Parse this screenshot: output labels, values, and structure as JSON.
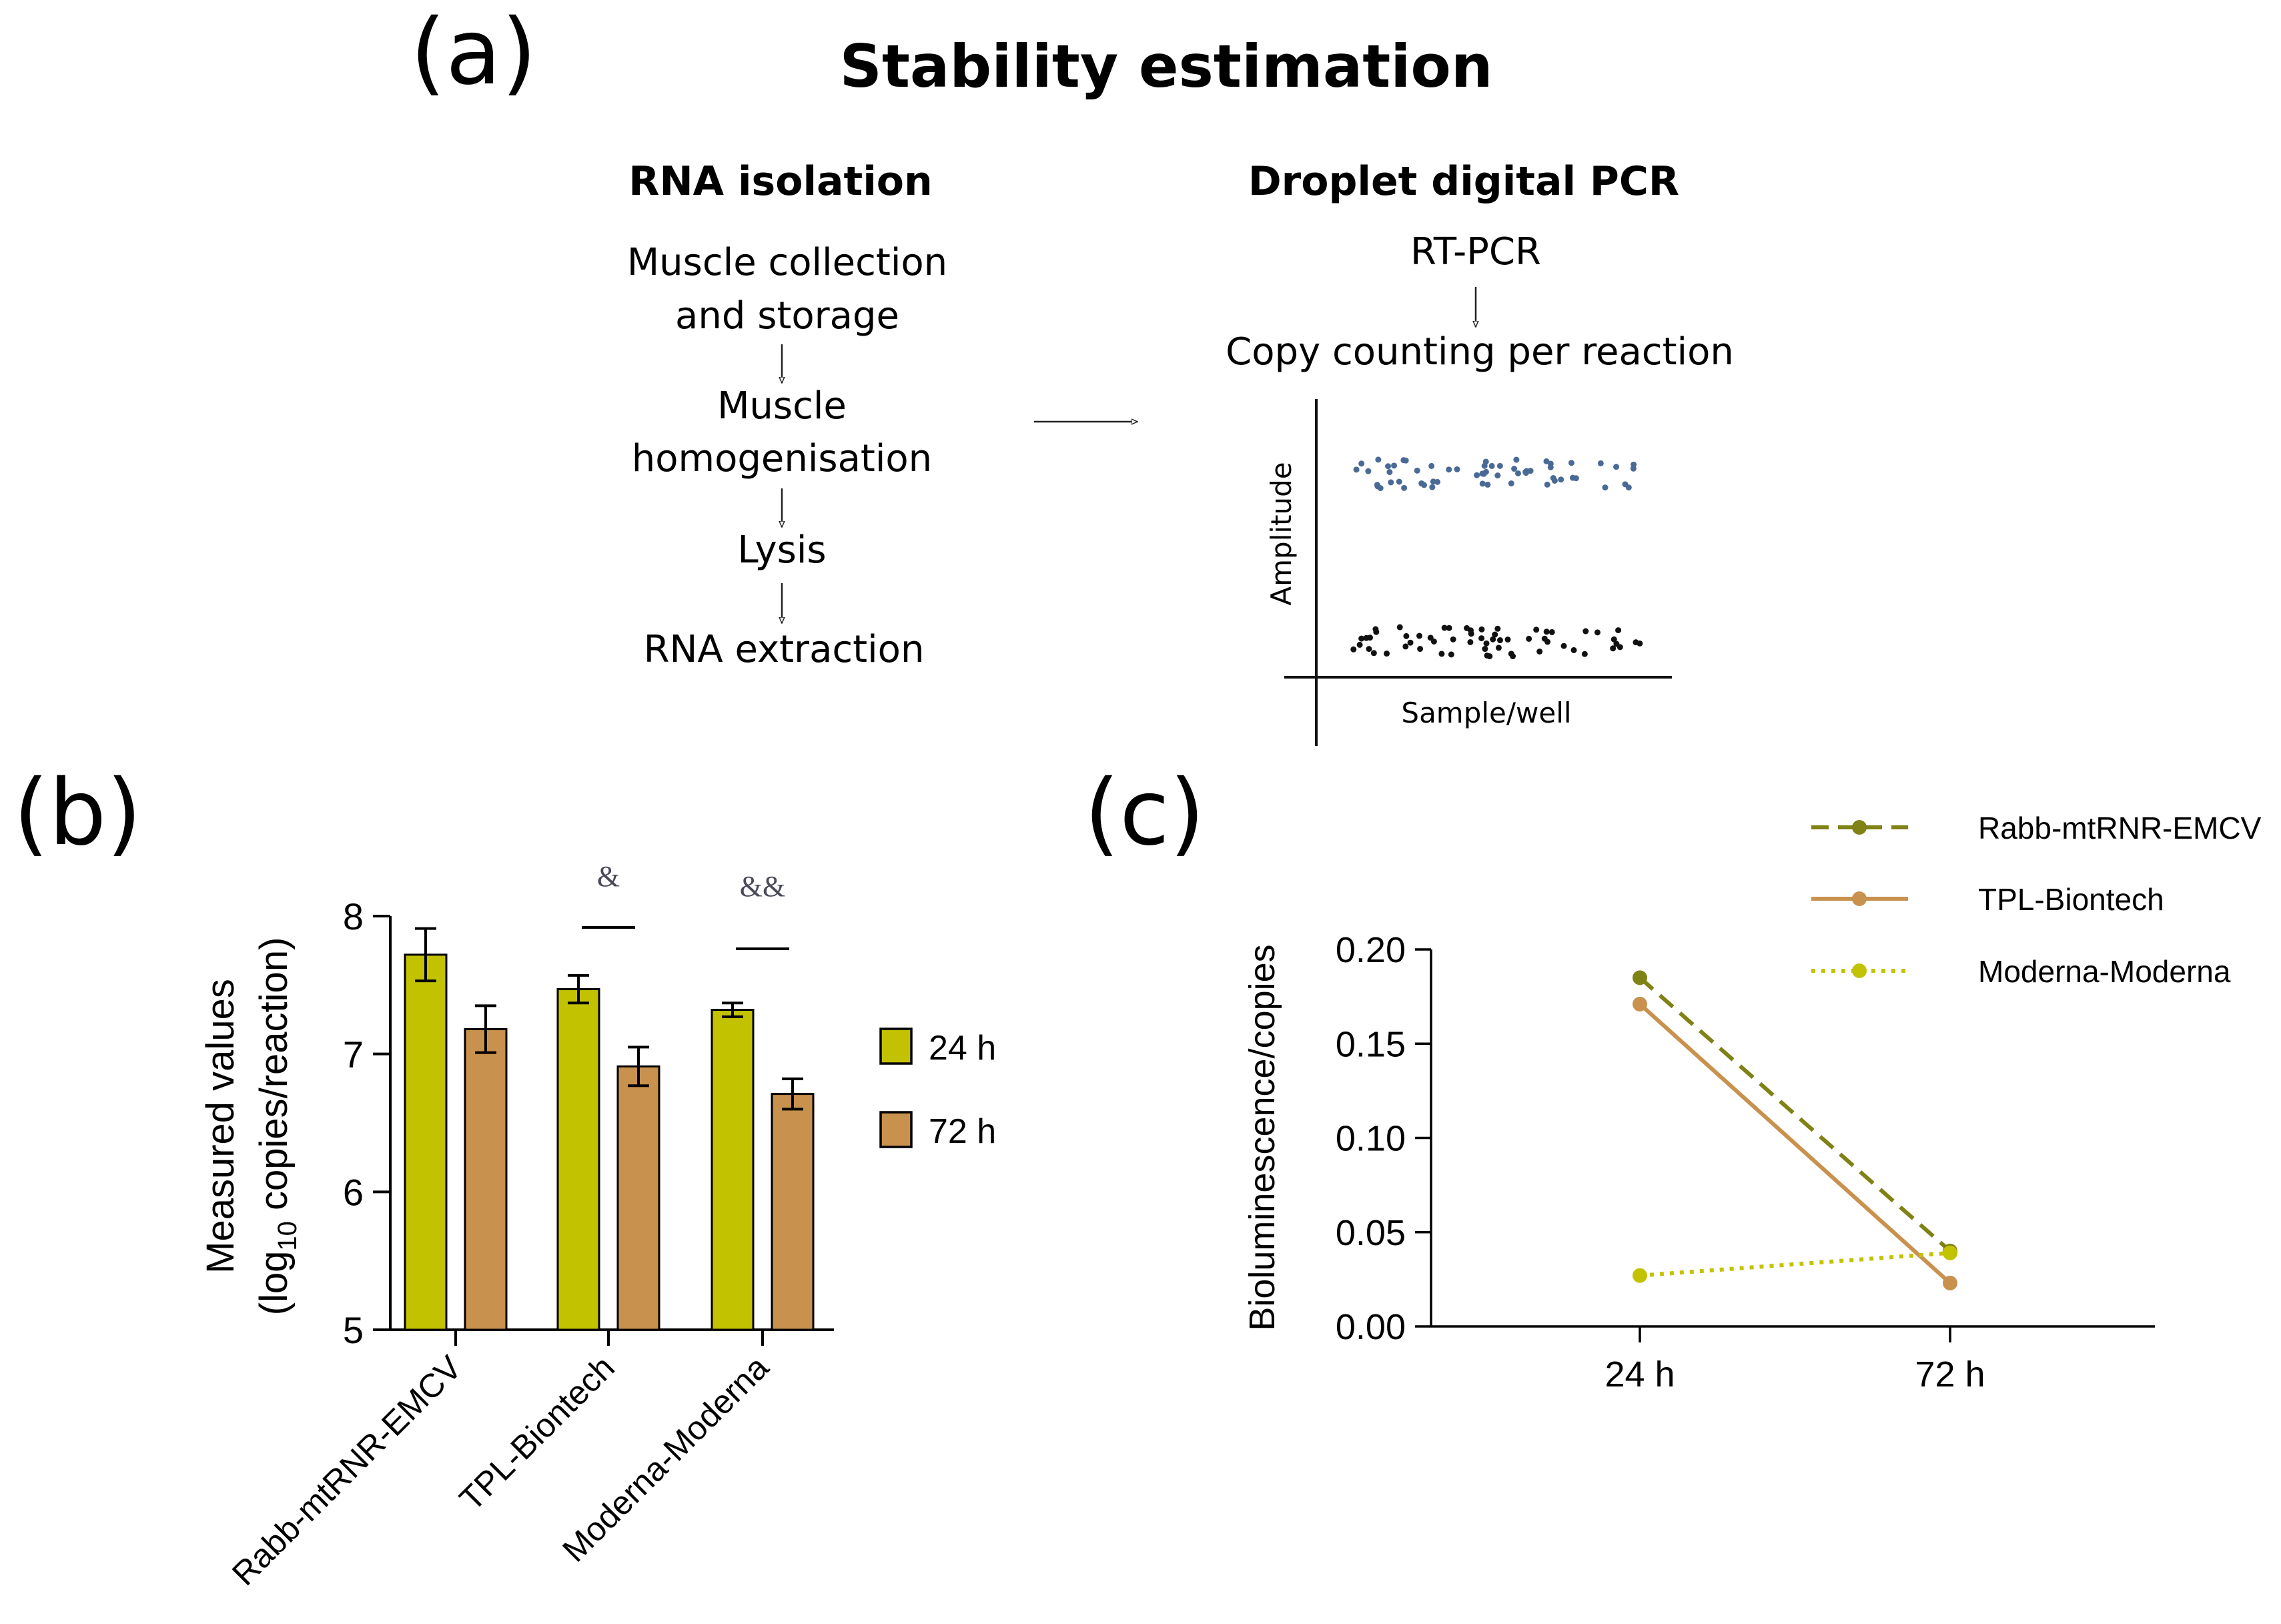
{
  "panel_a": {
    "label": "(a)",
    "title": "Stability estimation",
    "left_heading": "RNA isolation",
    "left_steps": [
      [
        "Muscle collection",
        "and storage"
      ],
      [
        "Muscle",
        "homogenisation"
      ],
      [
        "Lysis"
      ],
      [
        "RNA extraction"
      ]
    ],
    "right_heading": "Droplet digital PCR",
    "right_steps": [
      "RT-PCR",
      "Copy counting per reaction"
    ],
    "droplet_plot": {
      "ylabel": "Amplitude",
      "xlabel": "Sample/well",
      "positive_color": "#4a6a96",
      "negative_color": "#111111"
    }
  },
  "panel_b": {
    "label": "(b)"
  },
  "panel_c": {
    "label": "(c)"
  },
  "chart_data": [
    {
      "type": "bar",
      "panel": "b",
      "categories": [
        "Rabb-mtRNR-EMCV",
        "TPL-Biontech",
        "Moderna-Moderna"
      ],
      "series": [
        {
          "name": "24 h",
          "values": [
            7.72,
            7.47,
            7.32
          ],
          "errors": [
            0.19,
            0.1,
            0.05
          ],
          "color": "#c3c200"
        },
        {
          "name": "72 h",
          "values": [
            7.18,
            6.91,
            6.71
          ],
          "errors": [
            0.17,
            0.14,
            0.11
          ],
          "color": "#c8914e"
        }
      ],
      "ylabel_line1": "Measured values",
      "ylabel_line2_prefix": "(log",
      "ylabel_line2_sub": "10",
      "ylabel_line2_suffix": " copies/reaction)",
      "ylim": [
        5,
        8
      ],
      "yticks": [
        "5",
        "6",
        "7",
        "8"
      ],
      "significance": [
        {
          "category": "TPL-Biontech",
          "label": "&"
        },
        {
          "category": "Moderna-Moderna",
          "label": "&&"
        }
      ],
      "legend": "right"
    },
    {
      "type": "line",
      "panel": "c",
      "x": [
        "24 h",
        "72 h"
      ],
      "series": [
        {
          "name": "Rabb-mtRNR-EMCV",
          "values": [
            0.185,
            0.04
          ],
          "color": "#7f8214",
          "dash": "dashed"
        },
        {
          "name": "TPL-Biontech",
          "values": [
            0.171,
            0.023
          ],
          "color": "#c8914e",
          "dash": "solid"
        },
        {
          "name": "Moderna-Moderna",
          "values": [
            0.027,
            0.039
          ],
          "color": "#c3c200",
          "dash": "dotted"
        }
      ],
      "ylabel": "Bioluminescence/copies",
      "ylim": [
        0,
        0.2
      ],
      "yticks": [
        "0.00",
        "0.05",
        "0.10",
        "0.15",
        "0.20"
      ],
      "legend": "top-right"
    }
  ]
}
